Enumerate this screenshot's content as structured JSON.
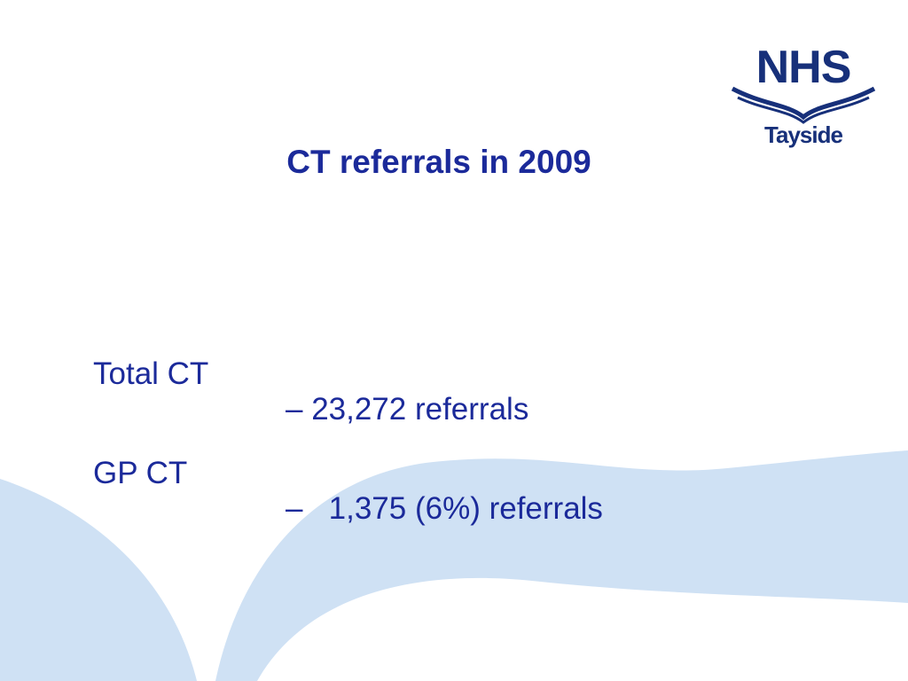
{
  "logo": {
    "brand": "NHS",
    "region": "Tayside"
  },
  "slide": {
    "title": "CT referrals in 2009",
    "items": [
      {
        "label": "Total CT",
        "text": "– 23,272 referrals"
      },
      {
        "label": "GP CT",
        "text": "–   1,375 (6%) referrals"
      }
    ]
  }
}
